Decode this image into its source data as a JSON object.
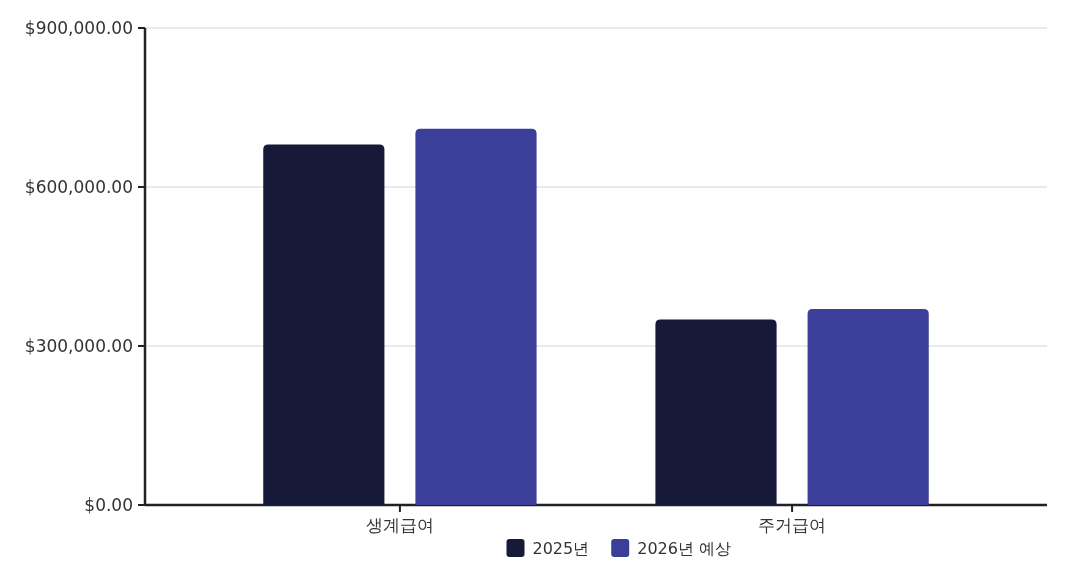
{
  "chart_data": {
    "type": "bar",
    "categories": [
      "생계급여",
      "주거급여"
    ],
    "series": [
      {
        "name": "2025년",
        "color": "#161938",
        "values": [
          680000,
          350000
        ]
      },
      {
        "name": "2026년 예상",
        "color": "#3b3f9a",
        "values": [
          710000,
          370000
        ]
      }
    ],
    "ylim": [
      0,
      900000
    ],
    "yticks": [
      {
        "value": 0,
        "label": "$0.00"
      },
      {
        "value": 300000,
        "label": "$300,000.00"
      },
      {
        "value": 600000,
        "label": "$600,000.00"
      },
      {
        "value": 900000,
        "label": "$900,000.00"
      }
    ],
    "grid": "y",
    "legend": "bottom"
  }
}
